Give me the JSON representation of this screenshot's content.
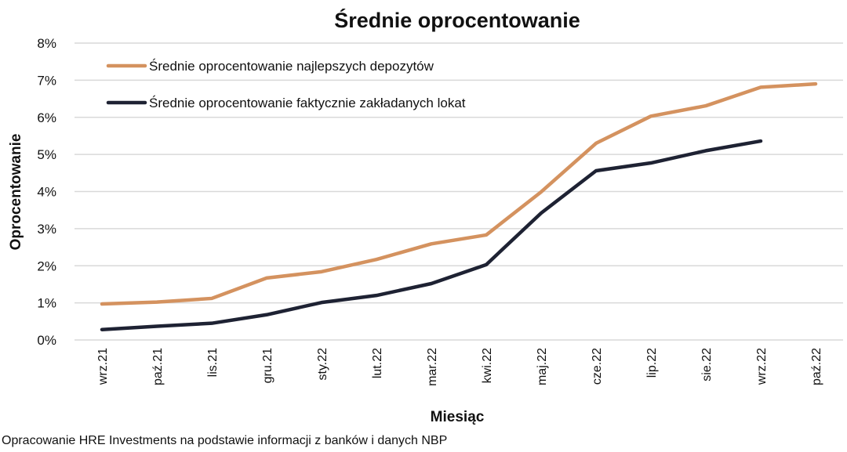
{
  "chart_data": {
    "type": "line",
    "title": "Średnie oprocentowanie",
    "xlabel": "Miesiąc",
    "ylabel": "Oprocentowanie",
    "categories": [
      "wrz.21",
      "paź.21",
      "lis.21",
      "gru.21",
      "sty.22",
      "lut.22",
      "mar.22",
      "kwi.22",
      "maj.22",
      "cze.22",
      "lip.22",
      "sie.22",
      "wrz.22",
      "paź.22"
    ],
    "ylim": [
      0,
      8
    ],
    "yticks": [
      "0%",
      "1%",
      "2%",
      "3%",
      "4%",
      "5%",
      "6%",
      "7%",
      "8%"
    ],
    "grid": true,
    "legend_position": "top-left",
    "series": [
      {
        "name": "Średnie oprocentowanie najlepszych depozytów",
        "color": "#d4925f",
        "values": [
          0.97,
          1.02,
          1.12,
          1.67,
          1.84,
          2.17,
          2.59,
          2.83,
          3.99,
          5.3,
          6.03,
          6.31,
          6.81,
          6.9
        ]
      },
      {
        "name": "Średnie oprocentowanie faktycznie zakładanych lokat",
        "color": "#1e2233",
        "values": [
          0.28,
          0.37,
          0.45,
          0.68,
          1.01,
          1.2,
          1.52,
          2.03,
          3.42,
          4.56,
          4.77,
          5.1,
          5.36,
          null
        ]
      }
    ]
  },
  "footer": "Opracowanie HRE Investments na podstawie informacji z banków i danych NBP"
}
